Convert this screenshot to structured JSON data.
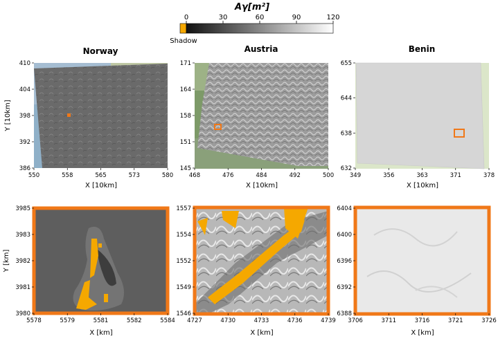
{
  "colorbar": {
    "title": "Aγ[m²]",
    "ticks": [
      "0",
      "30",
      "60",
      "90",
      "120"
    ],
    "shadow_label": "Shadow",
    "shadow_color": "#f5a800",
    "gradient": [
      "#111111",
      "#ffffff"
    ]
  },
  "highlight_color": "#f07818",
  "panels": [
    {
      "title": "Norway",
      "ylabel": "Y [10km]",
      "xlabel": "X [10km]",
      "xticks": [
        "550",
        "558",
        "565",
        "573",
        "580"
      ],
      "yticks": [
        "410",
        "404",
        "398",
        "392",
        "386"
      ],
      "zoom": {
        "ylabel": "Y [km]",
        "xlabel": "X [km]",
        "xticks": [
          "5578",
          "5579",
          "5581",
          "5582",
          "5584"
        ],
        "yticks": [
          "3985",
          "3983",
          "3982",
          "3981",
          "3980"
        ]
      }
    },
    {
      "title": "Austria",
      "ylabel": "",
      "xlabel": "X [10km]",
      "xticks": [
        "468",
        "476",
        "484",
        "492",
        "500"
      ],
      "yticks": [
        "171",
        "164",
        "158",
        "151",
        "145"
      ],
      "zoom": {
        "ylabel": "",
        "xlabel": "X [km]",
        "xticks": [
          "4727",
          "4730",
          "4733",
          "4736",
          "4739"
        ],
        "yticks": [
          "1557",
          "1554",
          "1552",
          "1549",
          "1546"
        ]
      }
    },
    {
      "title": "Benin",
      "ylabel": "",
      "xlabel": "X [10km]",
      "xticks": [
        "349",
        "356",
        "363",
        "371",
        "378"
      ],
      "yticks": [
        "655",
        "644",
        "638",
        "632"
      ],
      "zoom": {
        "ylabel": "",
        "xlabel": "X [km]",
        "xticks": [
          "3706",
          "3711",
          "3716",
          "3721",
          "3726"
        ],
        "yticks": [
          "6404",
          "6400",
          "6396",
          "6392",
          "6388"
        ]
      }
    }
  ]
}
